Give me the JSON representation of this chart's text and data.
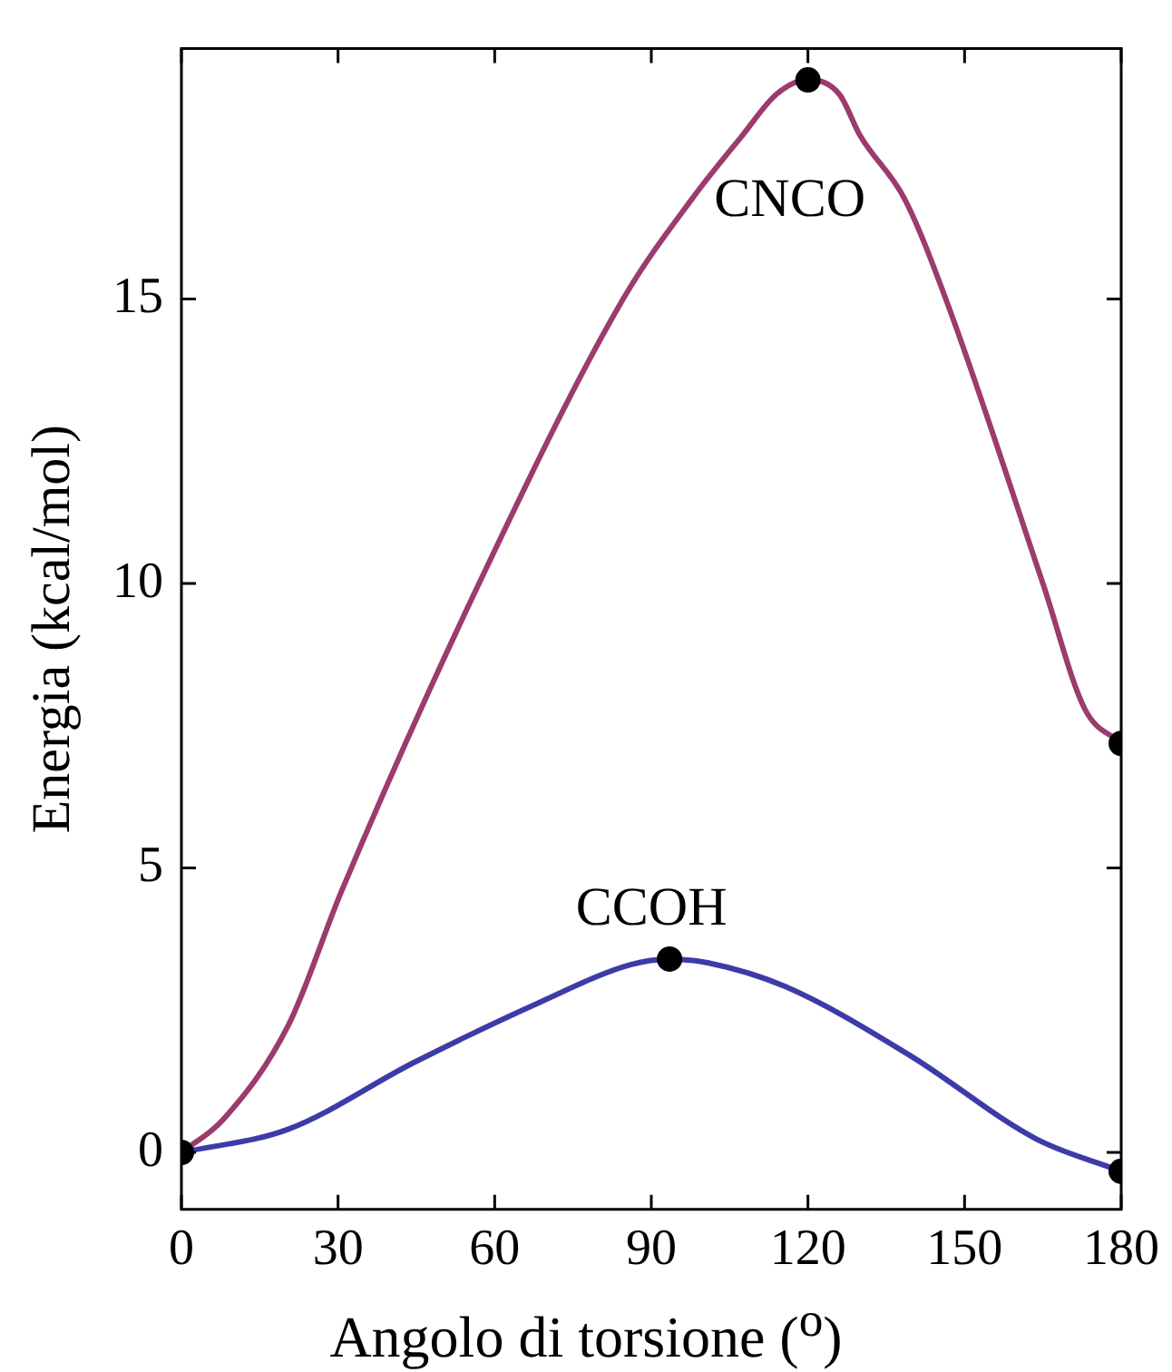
{
  "chart_data": {
    "type": "line",
    "xlabel": "Angolo di torsione ($^{o}$)",
    "ylabel": "Energia (kcal/mol)",
    "xlim": [
      0,
      180
    ],
    "xticks": [
      0,
      30,
      60,
      90,
      120,
      150,
      180
    ],
    "ylim": [
      -1,
      19.4
    ],
    "yticks": [
      0,
      5,
      10,
      15
    ],
    "grid": false,
    "legend": false,
    "marker": "none",
    "line_style": "solid",
    "series": [
      {
        "name": "CNCO",
        "color": "#9b3b6e",
        "x": [
          0,
          8,
          20.5,
          30.7,
          57,
          84.6,
          97.8,
          107.4,
          114,
          120,
          126,
          130,
          138.5,
          146.4,
          165,
          173,
          180
        ],
        "values": [
          0,
          0.58,
          2.24,
          4.6,
          10,
          15,
          16.76,
          17.87,
          18.6,
          18.85,
          18.6,
          17.87,
          16.76,
          15,
          10,
          7.8,
          7.19
        ]
      },
      {
        "name": "CCOH",
        "color": "#3c3ca8",
        "x": [
          0,
          20.5,
          44.5,
          68.4,
          86,
          93.5,
          101,
          115.8,
          139.8,
          163.7,
          180
        ],
        "values": [
          0,
          0.41,
          1.58,
          2.63,
          3.3,
          3.4,
          3.33,
          2.91,
          1.69,
          0.24,
          -0.33
        ]
      },
      {
        "type": "scatter",
        "marker": "circle",
        "color": "#000000",
        "x": [
          0,
          120,
          180,
          93.5,
          180
        ],
        "values": [
          0,
          18.85,
          7.19,
          3.4,
          -0.33
        ]
      }
    ]
  }
}
